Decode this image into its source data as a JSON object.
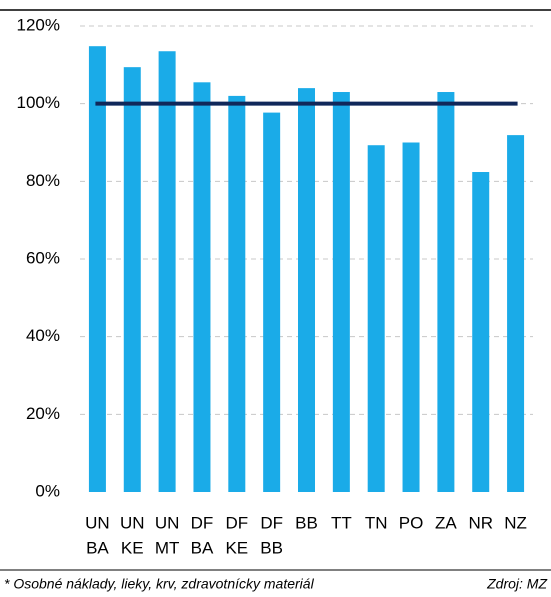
{
  "chart_data": {
    "type": "bar",
    "categories": [
      [
        "UN",
        "BA"
      ],
      [
        "UN",
        "KE"
      ],
      [
        "UN",
        "MT"
      ],
      [
        "DF",
        "BA"
      ],
      [
        "DF",
        "KE"
      ],
      [
        "DF",
        "BB"
      ],
      [
        "BB"
      ],
      [
        "TT"
      ],
      [
        "TN"
      ],
      [
        "PO"
      ],
      [
        "ZA"
      ],
      [
        "NR"
      ],
      [
        "NZ"
      ]
    ],
    "values": [
      114.8,
      109.4,
      113.5,
      105.5,
      102,
      97.7,
      104,
      103,
      89.3,
      90,
      103,
      82.4,
      91.9
    ],
    "color": "#1aabe8",
    "reference_line": {
      "value": 100,
      "color": "#10285a"
    },
    "ylim": [
      0,
      120
    ],
    "yticks": [
      {
        "value": 0,
        "label": "0%"
      },
      {
        "value": 20,
        "label": "20%"
      },
      {
        "value": 40,
        "label": "40%"
      },
      {
        "value": 60,
        "label": "60%"
      },
      {
        "value": 80,
        "label": "80%"
      },
      {
        "value": 100,
        "label": "100%"
      },
      {
        "value": 120,
        "label": "120%"
      }
    ],
    "grid": true,
    "footnote": "* Osobné náklady, lieky, krv, zdravotnícky materiál",
    "source": "Zdroj: MZ"
  }
}
